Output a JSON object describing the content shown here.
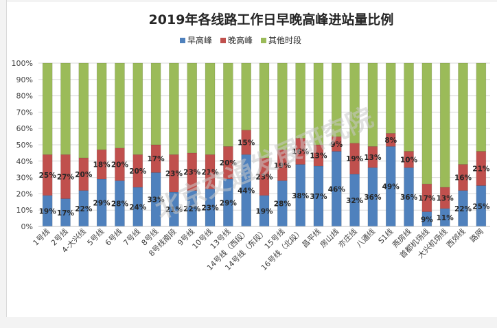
{
  "chart_data": {
    "type": "bar",
    "stacked": true,
    "title": "2019年各线路工作日早晚高峰进站量比例",
    "legend_position": "top",
    "y_ticks": [
      "0%",
      "10%",
      "20%",
      "30%",
      "40%",
      "50%",
      "60%",
      "70%",
      "80%",
      "90%",
      "100%"
    ],
    "ylim": [
      0,
      100
    ],
    "categories": [
      "1号线",
      "2号线",
      "4-大兴线",
      "5号线",
      "6号线",
      "7号线",
      "8号线",
      "8号线南段",
      "9号线",
      "10号线",
      "13号线",
      "14号线（西段）",
      "14号线（东段）",
      "15号线",
      "16号线（北段）",
      "昌平线",
      "房山线",
      "亦庄线",
      "八通线",
      "S1线",
      "燕房线",
      "首都机场线",
      "大兴机场线",
      "西郊线",
      "路网"
    ],
    "series": [
      {
        "name": "早高峰",
        "color": "#4f81bd",
        "values": [
          19,
          17,
          22,
          29,
          28,
          24,
          33,
          21,
          22,
          23,
          29,
          44,
          19,
          28,
          38,
          37,
          46,
          32,
          36,
          49,
          36,
          9,
          11,
          22,
          25
        ],
        "labels": [
          "19%",
          "17%",
          "22%",
          "29%",
          "28%",
          "24%",
          "33%",
          "21%",
          "22%",
          "23%",
          "29%",
          "44%",
          "19%",
          "28%",
          "38%",
          "37%",
          "46%",
          "32%",
          "36%",
          "49%",
          "36%",
          "9%",
          "11%",
          "22%",
          "25%"
        ]
      },
      {
        "name": "晚高峰",
        "color": "#c0504d",
        "values": [
          25,
          27,
          20,
          18,
          20,
          20,
          17,
          23,
          23,
          21,
          20,
          15,
          23,
          19,
          16,
          13,
          9,
          19,
          13,
          8,
          10,
          17,
          13,
          16,
          21
        ],
        "labels": [
          "25%",
          "27%",
          "20%",
          "18%",
          "20%",
          "20%",
          "17%",
          "23%",
          "23%",
          "21%",
          "20%",
          "15%",
          "23%",
          "19%",
          "16%",
          "13%",
          "9%",
          "19%",
          "13%",
          "8%",
          "10%",
          "17%",
          "13%",
          "16%",
          "21%"
        ]
      },
      {
        "name": "其他时段",
        "color": "#9bbb59",
        "values": [
          56,
          56,
          58,
          53,
          52,
          56,
          50,
          56,
          55,
          56,
          51,
          41,
          58,
          53,
          46,
          50,
          45,
          49,
          51,
          43,
          54,
          74,
          76,
          62,
          54
        ],
        "labels": []
      }
    ],
    "grid": true
  },
  "watermark": "北京交通发展研究院"
}
